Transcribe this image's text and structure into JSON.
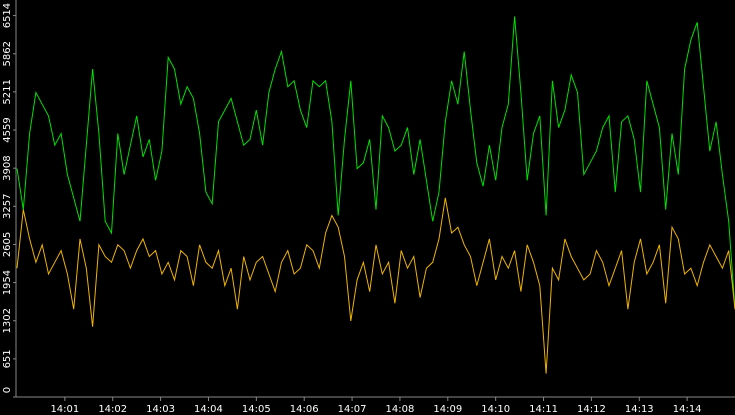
{
  "chart_data": {
    "type": "line",
    "xlim": [
      "14:00",
      "14:15"
    ],
    "xticks": [
      "14:01",
      "14:02",
      "14:03",
      "14:04",
      "14:05",
      "14:06",
      "14:07",
      "14:08",
      "14:09",
      "14:10",
      "14:11",
      "14:12",
      "14:13",
      "14:14"
    ],
    "ylim": [
      0,
      6780
    ],
    "yticks": [
      0,
      651,
      1302,
      1954,
      2605,
      3257,
      3908,
      4559,
      5211,
      5862,
      6514
    ],
    "series": [
      {
        "color": "#00e000",
        "values": [
          3900,
          3200,
          4500,
          5200,
          5000,
          4800,
          4300,
          4500,
          3800,
          3400,
          3000,
          4300,
          5600,
          4500,
          3000,
          2800,
          4500,
          3800,
          4300,
          4800,
          4100,
          4400,
          3700,
          4200,
          5800,
          5600,
          5000,
          5300,
          5100,
          4500,
          3500,
          3300,
          4700,
          4900,
          5100,
          4700,
          4300,
          4400,
          4900,
          4300,
          5200,
          5600,
          5900,
          5300,
          5400,
          4900,
          4600,
          5400,
          5300,
          5400,
          4700,
          3100,
          4400,
          5400,
          3900,
          4000,
          4400,
          3200,
          4800,
          4600,
          4200,
          4300,
          4600,
          3800,
          4400,
          3700,
          3000,
          3500,
          4700,
          5400,
          5000,
          5900,
          4900,
          4000,
          3600,
          4300,
          3700,
          4600,
          5000,
          6500,
          5200,
          3700,
          4500,
          4800,
          3100,
          5400,
          4600,
          4900,
          5500,
          5200,
          3800,
          4000,
          4200,
          4600,
          4800,
          3500,
          4700,
          4800,
          4400,
          3500,
          5400,
          5000,
          4600,
          3200,
          4500,
          3800,
          5600,
          6100,
          6400,
          5300,
          4200,
          4700,
          3800,
          3000,
          1500
        ]
      },
      {
        "color": "#f0b400",
        "values": [
          2200,
          3200,
          2700,
          2300,
          2600,
          2100,
          2300,
          2500,
          2100,
          1500,
          2700,
          2200,
          1200,
          2600,
          2400,
          2300,
          2600,
          2500,
          2200,
          2500,
          2700,
          2400,
          2500,
          2100,
          2300,
          2000,
          2500,
          2400,
          1900,
          2600,
          2300,
          2200,
          2500,
          1900,
          2200,
          1500,
          2400,
          2000,
          2300,
          2400,
          2100,
          1800,
          2300,
          2500,
          2100,
          2200,
          2600,
          2500,
          2200,
          2800,
          3100,
          2900,
          2400,
          1300,
          2000,
          2300,
          1800,
          2600,
          2100,
          2300,
          1600,
          2500,
          2200,
          2400,
          1700,
          2200,
          2300,
          2700,
          3400,
          2800,
          2900,
          2600,
          2400,
          1900,
          2300,
          2700,
          2000,
          2400,
          2200,
          2500,
          1800,
          2600,
          2300,
          1900,
          400,
          2200,
          2000,
          2700,
          2400,
          2200,
          2000,
          2100,
          2500,
          2300,
          1900,
          2200,
          2500,
          1500,
          2300,
          2700,
          2100,
          2300,
          2600,
          1600,
          2900,
          2700,
          2100,
          2200,
          1900,
          2300,
          2600,
          2400,
          2200,
          2500,
          1500
        ]
      }
    ]
  }
}
